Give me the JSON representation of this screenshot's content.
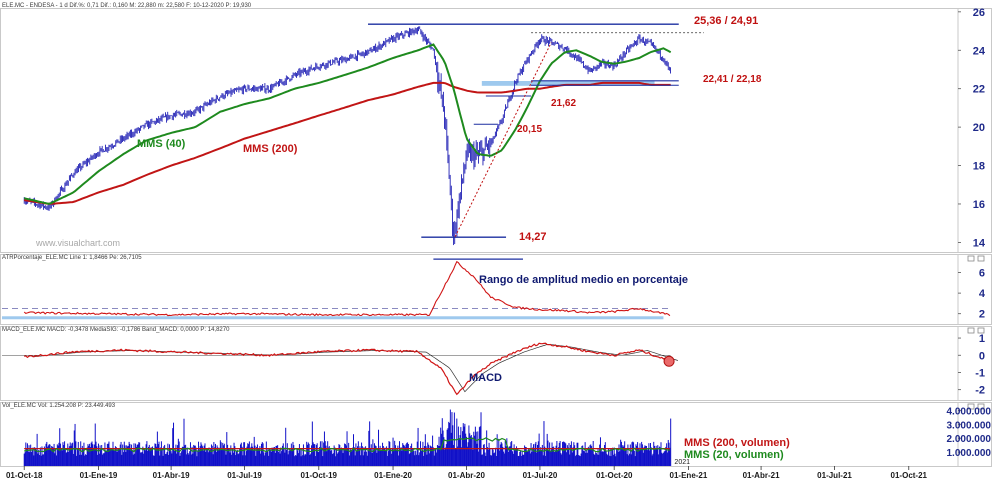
{
  "header": {
    "main": "ELE.MC - ENDESA  -  1 d  Dif.%: 0,71  Dif.: 0,160  M: 22,880  m: 22,580  F: 10-12-2020  P: 19,930",
    "atr": "ATRPorcentaje_ELE.MC  Line 1: 1,8466  Pe: 26,7105",
    "macd": "MACD_ELE.MC  MACD: -0,3478  MediaSIG: -0,1786  Band_MACD: 0,0000  P: 14,8270",
    "vol": "Vol_ELE.MC  Vol: 1.254.208  P: 23.449.493"
  },
  "watermark": "www.visualchart.com",
  "colors": {
    "price": "#1f1fb4",
    "mms40": "#1e8a1e",
    "mms200": "#c11515",
    "level": "#1c2fa0",
    "support_band": "#9ec9ee",
    "atr": "#d01515",
    "macd": "#d01515",
    "volume": "#1010c8",
    "grid_text": "#1f2a8a",
    "annot_red": "#c01010",
    "annot_blue": "#101a70"
  },
  "chart_data": [
    {
      "type": "line",
      "panel": "price",
      "series": [
        {
          "name": "MMS (40)",
          "color": "#1e8a1e"
        },
        {
          "name": "MMS (200)",
          "color": "#c11515"
        }
      ],
      "x": [
        "2018-10-01",
        "2018-11-01",
        "2018-12-01",
        "2019-01-01",
        "2019-02-01",
        "2019-03-01",
        "2019-04-01",
        "2019-05-01",
        "2019-06-01",
        "2019-07-01",
        "2019-08-01",
        "2019-09-01",
        "2019-10-01",
        "2019-11-01",
        "2019-12-01",
        "2020-01-01",
        "2020-02-01",
        "2020-02-20",
        "2020-03-05",
        "2020-03-16",
        "2020-04-01",
        "2020-04-15",
        "2020-05-01",
        "2020-05-15",
        "2020-06-01",
        "2020-06-15",
        "2020-07-01",
        "2020-07-15",
        "2020-08-01",
        "2020-08-15",
        "2020-09-01",
        "2020-09-15",
        "2020-10-01",
        "2020-10-15",
        "2020-11-01",
        "2020-11-15",
        "2020-12-01",
        "2020-12-10"
      ],
      "close": [
        16.2,
        15.8,
        17.6,
        18.7,
        19.4,
        20.1,
        20.6,
        20.8,
        21.6,
        22.0,
        22.0,
        22.7,
        23.2,
        23.5,
        23.9,
        24.6,
        25.1,
        24.0,
        20.5,
        14.3,
        18.6,
        18.5,
        19.1,
        20.4,
        22.4,
        23.5,
        24.6,
        24.4,
        24.1,
        23.6,
        22.9,
        23.3,
        23.2,
        23.9,
        24.6,
        24.3,
        23.6,
        22.8
      ],
      "mms40": [
        16.3,
        16.0,
        16.6,
        17.7,
        18.6,
        19.3,
        19.7,
        20.0,
        20.8,
        21.2,
        21.5,
        22.0,
        22.3,
        22.7,
        23.1,
        23.6,
        24.0,
        24.3,
        23.4,
        22.0,
        19.4,
        18.6,
        18.5,
        18.8,
        19.9,
        21.0,
        22.4,
        23.3,
        23.9,
        24.0,
        23.7,
        23.4,
        23.3,
        23.4,
        23.6,
        23.9,
        24.1,
        23.9
      ],
      "mms200": [
        16.2,
        16.0,
        16.1,
        16.6,
        17.0,
        17.5,
        18.0,
        18.4,
        18.9,
        19.4,
        19.8,
        20.2,
        20.6,
        21.0,
        21.4,
        21.7,
        22.1,
        22.3,
        22.3,
        22.1,
        21.9,
        21.8,
        21.8,
        21.8,
        21.9,
        22.0,
        22.0,
        22.1,
        22.2,
        22.2,
        22.2,
        22.3,
        22.3,
        22.3,
        22.3,
        22.2,
        22.2,
        22.2
      ],
      "ylim": [
        13.5,
        26.2
      ],
      "yticks": [
        14,
        16,
        18,
        20,
        22,
        24,
        26
      ],
      "annotations": [
        {
          "text": "25,36 / 24,91",
          "value": 25.36
        },
        {
          "text": "22,41 / 22,18",
          "value": 22.41
        },
        {
          "text": "21,62",
          "value": 21.62
        },
        {
          "text": "20,15",
          "value": 20.15
        },
        {
          "text": "14,27",
          "value": 14.27
        },
        {
          "text": "MMS (40)"
        },
        {
          "text": "MMS (200)"
        }
      ]
    },
    {
      "type": "line",
      "panel": "atr",
      "series": [
        {
          "name": "ATRPorcentaje",
          "color": "#d01515"
        }
      ],
      "x": [
        "2018-10-01",
        "2019-01-01",
        "2019-04-01",
        "2019-07-01",
        "2019-10-01",
        "2020-01-01",
        "2020-02-15",
        "2020-03-10",
        "2020-03-20",
        "2020-04-10",
        "2020-05-01",
        "2020-06-01",
        "2020-07-01",
        "2020-08-01",
        "2020-09-01",
        "2020-10-01",
        "2020-11-01",
        "2020-12-10"
      ],
      "values": [
        2.1,
        2.0,
        1.9,
        2.0,
        1.9,
        1.9,
        1.9,
        5.5,
        7.0,
        5.6,
        3.6,
        2.6,
        2.4,
        2.3,
        2.1,
        2.2,
        2.5,
        1.85
      ],
      "ylim": [
        1.0,
        7.8
      ],
      "yticks": [
        2,
        4,
        6
      ],
      "annotations": [
        {
          "text": "Rango de amplitud medio en porcentaje"
        }
      ]
    },
    {
      "type": "line",
      "panel": "macd",
      "series": [
        {
          "name": "MACD",
          "color": "#d01515"
        }
      ],
      "x": [
        "2018-10-01",
        "2018-12-01",
        "2019-02-01",
        "2019-04-01",
        "2019-06-01",
        "2019-08-01",
        "2019-10-01",
        "2019-12-01",
        "2020-02-01",
        "2020-03-01",
        "2020-03-20",
        "2020-04-10",
        "2020-05-01",
        "2020-06-01",
        "2020-07-01",
        "2020-08-01",
        "2020-09-01",
        "2020-10-01",
        "2020-11-01",
        "2020-12-10"
      ],
      "values": [
        -0.1,
        0.2,
        0.3,
        0.2,
        0.1,
        0.0,
        0.2,
        0.3,
        0.2,
        -0.8,
        -2.3,
        -1.2,
        -0.5,
        0.2,
        0.7,
        0.5,
        0.2,
        0.0,
        0.3,
        -0.35
      ],
      "ylim": [
        -2.6,
        1.7
      ],
      "yticks": [
        1,
        0,
        -1,
        -2
      ],
      "annotations": [
        {
          "text": "MACD"
        }
      ]
    },
    {
      "type": "bar",
      "panel": "volume",
      "series": [
        {
          "name": "MMS (200, volumen)",
          "color": "#c11515"
        },
        {
          "name": "MMS (20, volumen)",
          "color": "#1e8a1e"
        }
      ],
      "ylim": [
        0,
        4600000
      ],
      "yticks": [
        "1.000.000",
        "2.000.000",
        "3.000.000",
        "4.000.000"
      ],
      "ytick_values": [
        1000000,
        2000000,
        3000000,
        4000000
      ]
    }
  ],
  "x_axis": {
    "labels": [
      "01-Oct-18",
      "01-Ene-19",
      "01-Abr-19",
      "01-Jul-19",
      "01-Oct-19",
      "01-Ene-20",
      "01-Abr-20",
      "01-Jul-20",
      "01-Oct-20",
      "01-Ene-21",
      "01-Abr-21",
      "01-Jul-21",
      "01-Oct-21"
    ],
    "label_dates": [
      "2018-10-01",
      "2019-01-01",
      "2019-04-01",
      "2019-07-01",
      "2019-10-01",
      "2020-01-01",
      "2020-04-01",
      "2020-07-01",
      "2020-10-01",
      "2021-01-01",
      "2021-04-01",
      "2021-07-01",
      "2021-10-01"
    ],
    "year_marker": "2021"
  }
}
